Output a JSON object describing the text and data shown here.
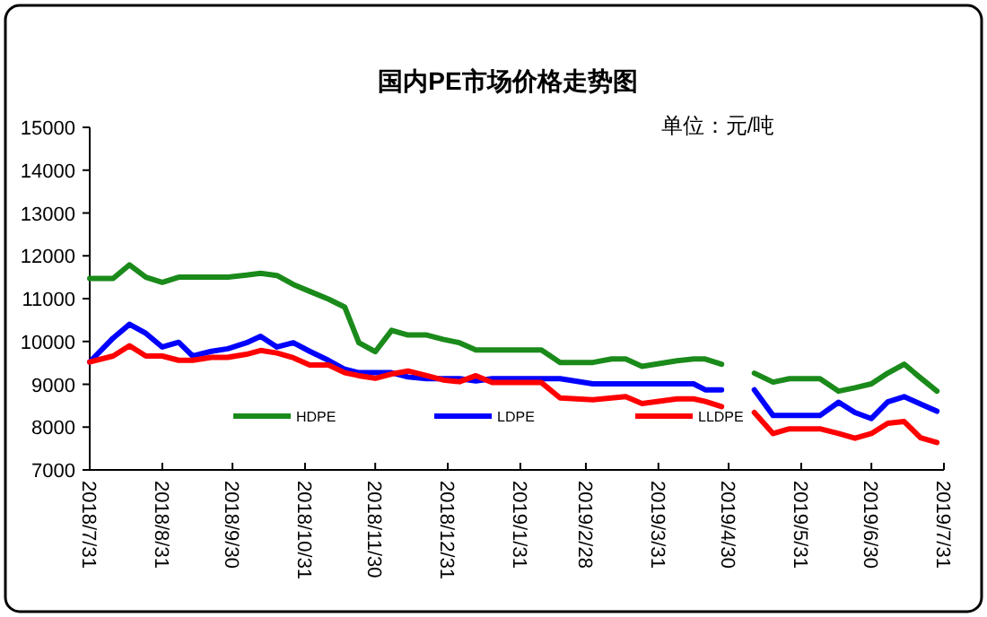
{
  "chart_data": {
    "type": "line",
    "title": "国内PE市场价格走势图",
    "ylabel": "单位：元/吨",
    "x": [
      "2018-07-31",
      "2018-08-10",
      "2018-08-17",
      "2018-08-24",
      "2018-08-31",
      "2018-09-07",
      "2018-09-13",
      "2018-09-21",
      "2018-09-28",
      "2018-10-06",
      "2018-10-12",
      "2018-10-19",
      "2018-10-26",
      "2018-11-02",
      "2018-11-10",
      "2018-11-17",
      "2018-11-23",
      "2018-11-30",
      "2018-12-07",
      "2018-12-14",
      "2018-12-22",
      "2018-12-29",
      "2019-01-05",
      "2019-01-12",
      "2019-01-19",
      "2019-01-31",
      "2019-02-09",
      "2019-02-17",
      "2019-03-03",
      "2019-03-11",
      "2019-03-17",
      "2019-03-24",
      "2019-04-08",
      "2019-04-15",
      "2019-04-20",
      "2019-04-27",
      "2019-05-04",
      "2019-05-11",
      "2019-05-19",
      "2019-05-26",
      "2019-06-08",
      "2019-06-16",
      "2019-06-23",
      "2019-06-30",
      "2019-07-07",
      "2019-07-14",
      "2019-07-21",
      "2019-07-28"
    ],
    "series": [
      {
        "name": "HDPE",
        "color": "#1a8a1a",
        "values": [
          11470,
          11470,
          11790,
          11500,
          11380,
          11500,
          11500,
          11500,
          11500,
          11550,
          11590,
          11540,
          11330,
          11170,
          10990,
          10800,
          9970,
          9760,
          10260,
          10150,
          10150,
          10050,
          9970,
          9800,
          9800,
          9800,
          9800,
          9510,
          9510,
          9590,
          9590,
          9420,
          9550,
          9590,
          9590,
          9470,
          null,
          9260,
          9050,
          9130,
          9130,
          8840,
          8920,
          9010,
          9260,
          9470,
          9150,
          8840
        ]
      },
      {
        "name": "LDPE",
        "color": "#0000ff",
        "values": [
          9520,
          10080,
          10400,
          10190,
          9870,
          9980,
          9660,
          9770,
          9830,
          9970,
          10120,
          9870,
          9970,
          9770,
          9560,
          9350,
          9270,
          9270,
          9270,
          9170,
          9130,
          9130,
          9130,
          9080,
          9130,
          9130,
          9130,
          9130,
          9010,
          9010,
          9010,
          9010,
          9010,
          9010,
          8870,
          8870,
          null,
          8870,
          8270,
          8270,
          8270,
          8580,
          8340,
          8200,
          8590,
          8710,
          8540,
          8370
        ]
      },
      {
        "name": "LLDPE",
        "color": "#ff0000",
        "values": [
          9520,
          9660,
          9900,
          9660,
          9660,
          9560,
          9560,
          9630,
          9630,
          9700,
          9790,
          9730,
          9620,
          9450,
          9450,
          9270,
          9200,
          9140,
          9240,
          9310,
          9200,
          9100,
          9060,
          9200,
          9040,
          9040,
          9040,
          8680,
          8640,
          8680,
          8710,
          8550,
          8660,
          8660,
          8600,
          8480,
          null,
          8340,
          7850,
          7960,
          7960,
          7850,
          7740,
          7850,
          8090,
          8130,
          7750,
          7640
        ]
      }
    ],
    "xlim": [
      "2018-07-31",
      "2019-07-31"
    ],
    "xticks": [
      {
        "value": "2018-07-31",
        "label": "2018/7/31"
      },
      {
        "value": "2018-08-31",
        "label": "2018/8/31"
      },
      {
        "value": "2018-09-30",
        "label": "2018/9/30"
      },
      {
        "value": "2018-10-31",
        "label": "2018/10/31"
      },
      {
        "value": "2018-11-30",
        "label": "2018/11/30"
      },
      {
        "value": "2018-12-31",
        "label": "2018/12/31"
      },
      {
        "value": "2019-01-31",
        "label": "2019/1/31"
      },
      {
        "value": "2019-02-28",
        "label": "2019/2/28"
      },
      {
        "value": "2019-03-31",
        "label": "2019/3/31"
      },
      {
        "value": "2019-04-30",
        "label": "2019/4/30"
      },
      {
        "value": "2019-05-31",
        "label": "2019/5/31"
      },
      {
        "value": "2019-06-30",
        "label": "2019/6/30"
      },
      {
        "value": "2019-07-31",
        "label": "2019/7/31"
      }
    ],
    "ylim": [
      7000,
      15000
    ],
    "yticks": [
      7000,
      8000,
      9000,
      10000,
      11000,
      12000,
      13000,
      14000,
      15000
    ],
    "legend": "bottom"
  }
}
